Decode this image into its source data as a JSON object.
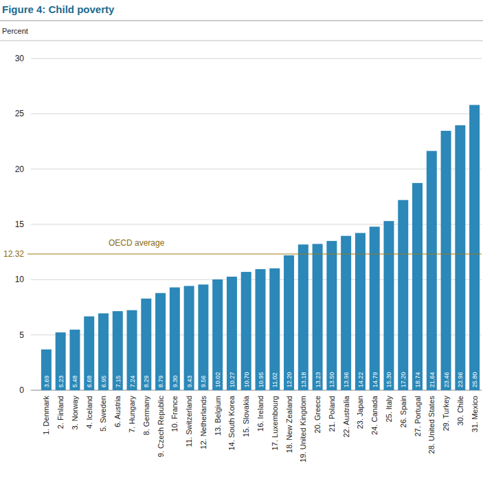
{
  "chart_data": {
    "type": "bar",
    "title": "Figure 4: Child poverty",
    "y_label": "Percent",
    "categories": [
      "1. Denmark",
      "2. Finland",
      "3. Norway",
      "4. Iceland",
      "5. Sweden",
      "6. Austria",
      "7. Hungary",
      "8. Germany",
      "9. Czech Republic",
      "10. France",
      "11. Switzerland",
      "12. Netherlands",
      "13. Belgium",
      "14. South Korea",
      "15. Slovakia",
      "16. Ireland",
      "17. Luxembourg",
      "18. New Zealand",
      "19. United Kingdom",
      "20. Greece",
      "21. Poland",
      "22. Australia",
      "23. Japan",
      "24. Canada",
      "25. Italy",
      "26. Spain",
      "27. Portugal",
      "28. United States",
      "29. Turkey",
      "30. Chile",
      "31. Mexico"
    ],
    "values": [
      3.69,
      5.23,
      5.48,
      6.68,
      6.95,
      7.15,
      7.24,
      8.29,
      8.79,
      9.3,
      9.43,
      9.56,
      10.02,
      10.27,
      10.7,
      10.95,
      11.02,
      12.2,
      13.18,
      13.23,
      13.5,
      13.96,
      14.22,
      14.79,
      15.3,
      17.2,
      18.74,
      21.64,
      23.46,
      23.96,
      25.8
    ],
    "value_labels": [
      "3.69",
      "5.23",
      "5.48",
      "6.68",
      "6.95",
      "7.15",
      "7.24",
      "8.29",
      "8.79",
      "9.30",
      "9.43",
      "9.56",
      "10.02",
      "10.27",
      "10.70",
      "10.95",
      "11.02",
      "12.20",
      "13.18",
      "13.23",
      "13.50",
      "13.96",
      "14.22",
      "14.79",
      "15.30",
      "17.20",
      "18.74",
      "21.64",
      "23.46",
      "23.96",
      "25.80"
    ],
    "color": "#2b88b8",
    "data_labels": true,
    "ylim": [
      0,
      30
    ],
    "yticks": [
      0,
      5,
      10,
      15,
      20,
      25,
      30
    ],
    "grid": true,
    "reference_line": {
      "label": "OECD average",
      "value": 12.32
    }
  }
}
